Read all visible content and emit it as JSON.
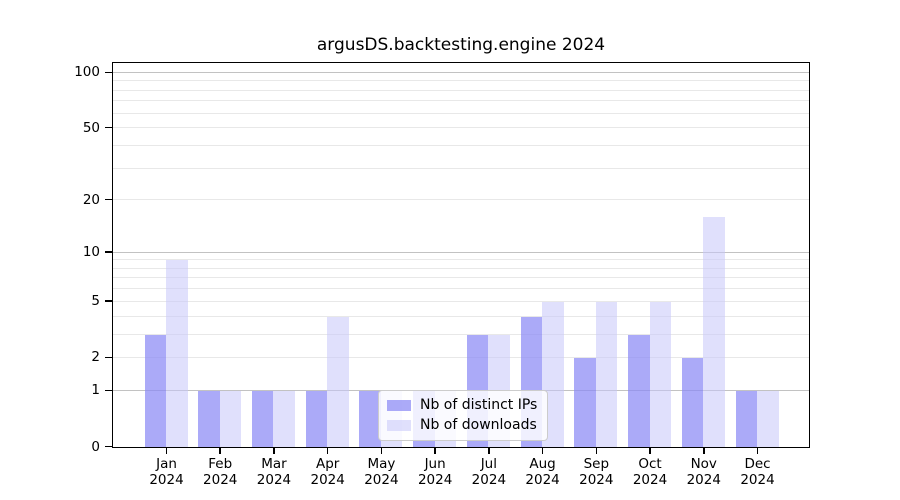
{
  "chart_data": {
    "type": "bar",
    "title": "argusDS.backtesting.engine 2024",
    "categories": [
      "Jan",
      "Feb",
      "Mar",
      "Apr",
      "May",
      "Jun",
      "Jul",
      "Aug",
      "Sep",
      "Oct",
      "Nov",
      "Dec"
    ],
    "year_label": "2024",
    "series": [
      {
        "name": "Nb of distinct IPs",
        "color": "rgba(138,137,245,0.72)",
        "values": [
          3,
          1,
          1,
          1,
          1,
          1,
          3,
          4,
          2,
          3,
          2,
          1
        ]
      },
      {
        "name": "Nb of downloads",
        "color": "rgba(199,198,250,0.55)",
        "values": [
          9,
          1,
          1,
          4,
          1,
          1,
          3,
          5,
          5,
          5,
          16,
          1
        ]
      }
    ],
    "xlabel": "",
    "ylabel": "",
    "yscale": "log1p",
    "ylim": [
      0,
      111.6
    ],
    "yticks": [
      0,
      1,
      2,
      5,
      10,
      20,
      50,
      100
    ],
    "grid_major": [
      1,
      10,
      100
    ],
    "grid_minor": [
      2,
      3,
      4,
      5,
      6,
      7,
      8,
      9,
      20,
      30,
      40,
      50,
      60,
      70,
      80,
      90
    ],
    "legend_position": "lower center",
    "colors": {
      "grid_major": "#c2c2c2",
      "grid_minor": "#e8e8e8",
      "spine": "#000000",
      "text": "#000000",
      "background": "#ffffff"
    }
  }
}
